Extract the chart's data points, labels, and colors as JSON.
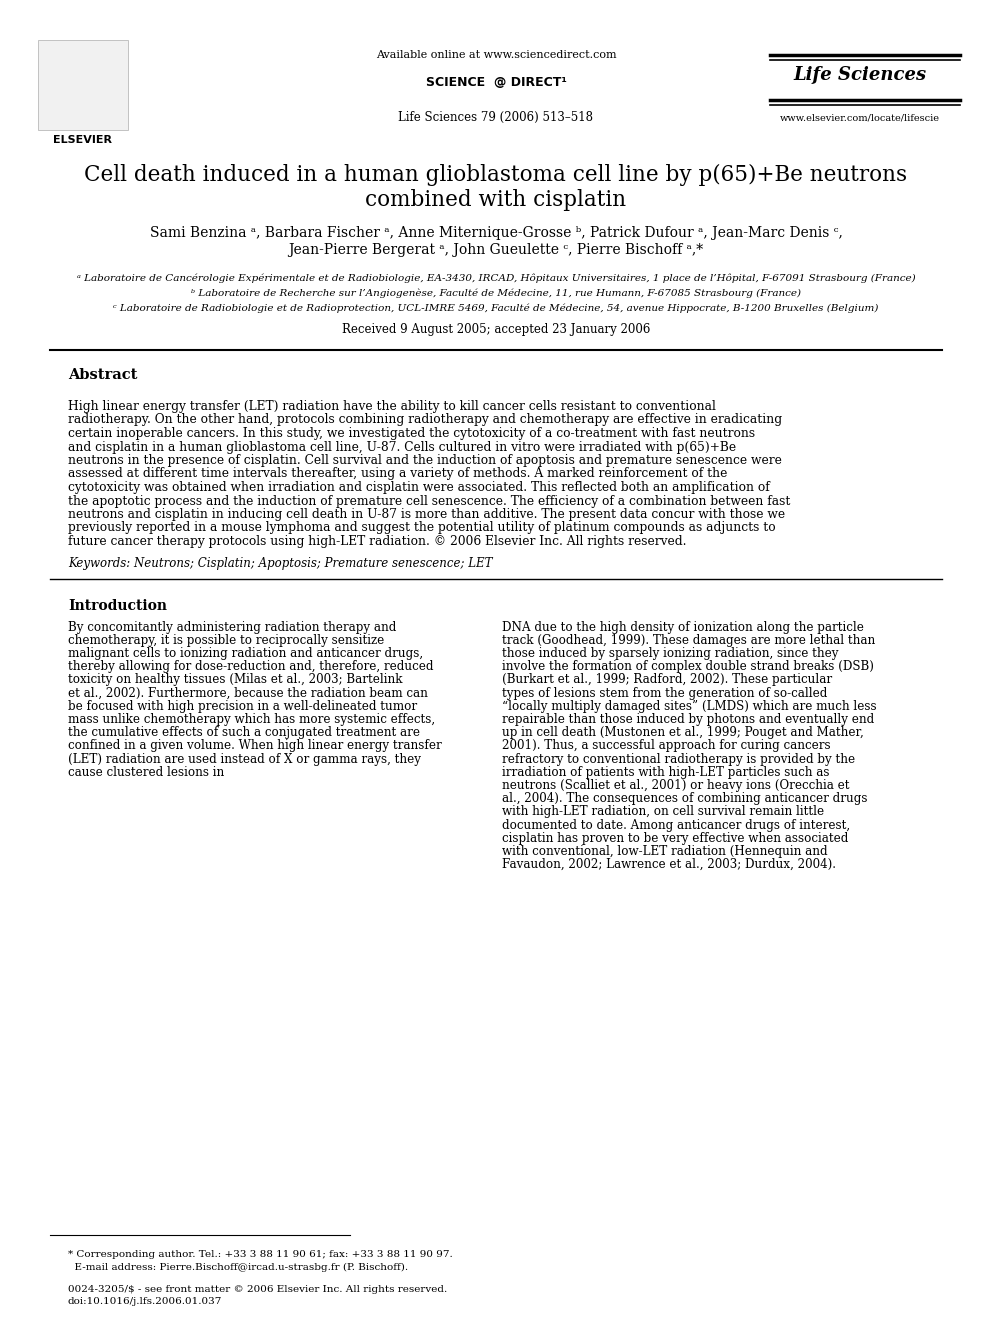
{
  "bg_color": "#ffffff",
  "header_available_text": "Available online at www.sciencedirect.com",
  "header_journal_text": "Life Sciences 79 (2006) 513–518",
  "header_lifesciences": "Life Sciences",
  "header_url": "www.elsevier.com/locate/lifescie",
  "title_line1": "Cell death induced in a human glioblastoma cell line by p(65)+Be neutrons",
  "title_line2": "combined with cisplatin",
  "authors": "Sami Benzina ᵃ, Barbara Fischer ᵃ, Anne Miternique-Grosse ᵇ, Patrick Dufour ᵃ, Jean-Marc Denis ᶜ,\nJean-Pierre Bergerat ᵃ, John Gueulette ᶜ, Pierre Bischoff ᵃ,*",
  "affil_a": "ᵃ Laboratoire de Cancérologie Expérimentale et de Radiobiologie, EA-3430, IRCAD, Hôpitaux Universitaires, 1 place de l’Hôpital, F-67091 Strasbourg (France)",
  "affil_b": "ᵇ Laboratoire de Recherche sur l’Angiogenèse, Faculté de Médecine, 11, rue Humann, F-67085 Strasbourg (France)",
  "affil_c": "ᶜ Laboratoire de Radiobiologie et de Radioprotection, UCL-IMRE 5469, Faculté de Médecine, 54, avenue Hippocrate, B-1200 Bruxelles (Belgium)",
  "received": "Received 9 August 2005; accepted 23 January 2006",
  "abstract_title": "Abstract",
  "abstract_text": "High linear energy transfer (LET) radiation have the ability to kill cancer cells resistant to conventional radiotherapy. On the other hand, protocols combining radiotherapy and chemotherapy are effective in eradicating certain inoperable cancers. In this study, we investigated the cytotoxicity of a co-treatment with fast neutrons and cisplatin in a human glioblastoma cell line, U-87. Cells cultured in vitro were irradiated with p(65)+Be neutrons in the presence of cisplatin. Cell survival and the induction of apoptosis and premature senescence were assessed at different time intervals thereafter, using a variety of methods. A marked reinforcement of the cytotoxicity was obtained when irradiation and cisplatin were associated. This reflected both an amplification of the apoptotic process and the induction of premature cell senescence. The efficiency of a combination between fast neutrons and cisplatin in inducing cell death in U-87 is more than additive. The present data concur with those we previously reported in a mouse lymphoma and suggest the potential utility of platinum compounds as adjuncts to future cancer therapy protocols using high-LET radiation.\n© 2006 Elsevier Inc. All rights reserved.",
  "keywords": "Keywords: Neutrons; Cisplatin; Apoptosis; Premature senescence; LET",
  "intro_title": "Introduction",
  "intro_col1": "By concomitantly administering radiation therapy and chemotherapy, it is possible to reciprocally sensitize malignant cells to ionizing radiation and anticancer drugs, thereby allowing for dose-reduction and, therefore, reduced toxicity on healthy tissues (Milas et al., 2003; Bartelink et al., 2002). Furthermore, because the radiation beam can be focused with high precision in a well-delineated tumor mass unlike chemotherapy which has more systemic effects, the cumulative effects of such a conjugated treatment are confined in a given volume. When high linear energy transfer (LET) radiation are used instead of X or gamma rays, they cause clustered lesions in",
  "intro_col2": "DNA due to the high density of ionization along the particle track (Goodhead, 1999). These damages are more lethal than those induced by sparsely ionizing radiation, since they involve the formation of complex double strand breaks (DSB) (Burkart et al., 1999; Radford, 2002). These particular types of lesions stem from the generation of so-called “locally multiply damaged sites” (LMDS) which are much less repairable than those induced by photons and eventually end up in cell death (Mustonen et al., 1999; Pouget and Mather, 2001). Thus, a successful approach for curing cancers refractory to conventional radiotherapy is provided by the irradiation of patients with high-LET particles such as neutrons (Scalliet et al., 2001) or heavy ions (Orecchia et al., 2004). The consequences of combining anticancer drugs with high-LET radiation, on cell survival remain little documented to date. Among anticancer drugs of interest, cisplatin has proven to be very effective when associated with conventional, low-LET radiation (Hennequin and Favaudon, 2002; Lawrence et al., 2003; Durdux, 2004).",
  "footnote_star": "* Corresponding author. Tel.: +33 3 88 11 90 61; fax: +33 3 88 11 90 97.\n  E-mail address: Pierre.Bischoff@ircad.u-strasbg.fr (P. Bischoff).",
  "footnote_issn": "0024-3205/$ - see front matter © 2006 Elsevier Inc. All rights reserved.\ndoi:10.1016/j.lfs.2006.01.037"
}
